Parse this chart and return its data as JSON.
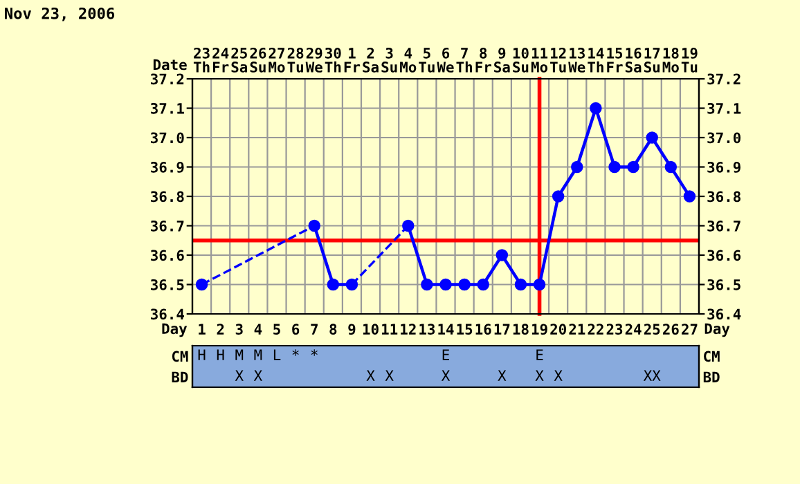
{
  "chart_data": [
    {
      "type": "line",
      "title": "Nov 23, 2006",
      "xlabel": "Day",
      "x2label": "Date",
      "categories": [
        "1",
        "2",
        "3",
        "4",
        "5",
        "6",
        "7",
        "8",
        "9",
        "10",
        "11",
        "12",
        "13",
        "14",
        "15",
        "16",
        "17",
        "18",
        "19",
        "20",
        "21",
        "22",
        "23",
        "24",
        "25",
        "26",
        "27"
      ],
      "series": [
        {
          "color": "#0000ff",
          "values": [
            36.5,
            null,
            null,
            null,
            null,
            null,
            36.7,
            36.5,
            36.5,
            null,
            null,
            36.7,
            36.5,
            36.5,
            36.5,
            36.5,
            36.6,
            36.5,
            36.5,
            36.8,
            36.9,
            37.1,
            36.9,
            36.9,
            37.0,
            36.9,
            36.8
          ]
        }
      ],
      "marker": "circle",
      "line_style": "solid",
      "grid": true,
      "ylim": [
        36.4,
        37.2
      ],
      "yticks": [
        {
          "value": 36.4,
          "label": "36.4"
        },
        {
          "value": 36.5,
          "label": "36.5"
        },
        {
          "value": 36.6,
          "label": "36.6"
        },
        {
          "value": 36.7,
          "label": "36.7"
        },
        {
          "value": 36.8,
          "label": "36.8"
        },
        {
          "value": 36.9,
          "label": "36.9"
        },
        {
          "value": 37.0,
          "label": "37.0"
        },
        {
          "value": 37.1,
          "label": "37.1"
        },
        {
          "value": 37.2,
          "label": "37.2"
        }
      ],
      "y2lim": [
        36.4,
        37.2
      ],
      "y2ticks": [
        {
          "value": 36.4,
          "label": "36.4"
        },
        {
          "value": 36.5,
          "label": "36.5"
        },
        {
          "value": 36.6,
          "label": "36.6"
        },
        {
          "value": 36.7,
          "label": "36.7"
        },
        {
          "value": 36.8,
          "label": "36.8"
        },
        {
          "value": 36.9,
          "label": "36.9"
        },
        {
          "value": 37.0,
          "label": "37.0"
        },
        {
          "value": 37.1,
          "label": "37.1"
        },
        {
          "value": 37.2,
          "label": "37.2"
        }
      ],
      "ref_lines": [
        {
          "axis": "y",
          "value": 36.65,
          "color": "#ff0000"
        },
        {
          "axis": "x",
          "value": "19",
          "color": "#ff0000"
        }
      ],
      "annotations": [
        "23\nTh",
        "24\nFr",
        "25\nSa",
        "26\nSu",
        "27\nMo",
        "28\nTu",
        "29\nWe",
        "30\nTh",
        "1\nFr",
        "2\nSa",
        "3\nSu",
        "4\nMo",
        "5\nTu",
        "6\nWe",
        "7\nTh",
        "8\nFr",
        "9\nSa",
        "10\nSu",
        "11\nMo",
        "12\nTu",
        "13\nWe",
        "14\nTh",
        "15\nFr",
        "16\nSa",
        "17\nSu",
        "18\nMo",
        "19\nTu"
      ]
    },
    {
      "type": "heatmap",
      "categories": [
        null,
        null,
        null,
        null,
        null,
        null,
        null,
        null,
        null,
        null,
        null,
        null,
        null,
        null,
        null,
        null,
        null,
        null,
        null,
        null,
        null,
        null,
        null,
        null,
        null,
        null,
        null
      ],
      "y_categories": [
        "CM",
        "BD"
      ],
      "y2_categories": [
        "CM",
        "BD"
      ],
      "cells": [
        [
          null,
          null,
          null,
          null,
          null,
          null,
          null,
          null,
          null,
          null,
          null,
          null,
          null,
          null,
          null,
          null,
          null,
          null,
          null,
          null,
          null,
          null,
          null,
          null,
          null,
          null,
          null
        ],
        [
          null,
          null,
          null,
          null,
          null,
          null,
          null,
          null,
          null,
          null,
          null,
          null,
          null,
          null,
          null,
          null,
          null,
          null,
          null,
          null,
          null,
          null,
          null,
          null,
          null,
          null,
          null
        ]
      ],
      "cell_labels": [
        [
          "H",
          "H",
          "M",
          "M",
          "L",
          "*",
          "*",
          null,
          null,
          null,
          null,
          null,
          null,
          "E",
          null,
          null,
          null,
          null,
          "E",
          null,
          null,
          null,
          null,
          null,
          null,
          null,
          null
        ],
        [
          null,
          null,
          "X",
          "X",
          null,
          null,
          null,
          null,
          null,
          "X",
          "X",
          null,
          null,
          "X",
          null,
          null,
          "X",
          null,
          "X",
          "X",
          null,
          null,
          null,
          null,
          "XX",
          null,
          null
        ]
      ]
    }
  ]
}
